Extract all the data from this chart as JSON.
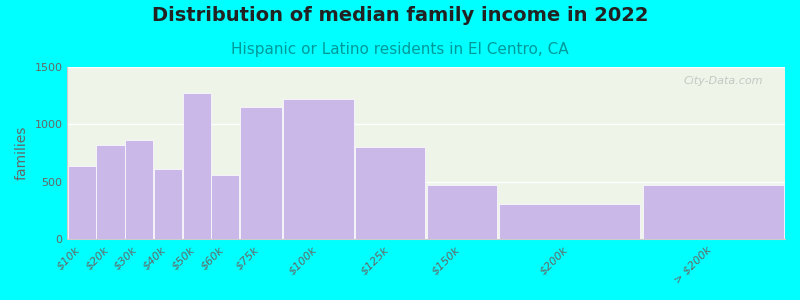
{
  "title": "Distribution of median family income in 2022",
  "subtitle": "Hispanic or Latino residents in El Centro, CA",
  "ylabel": "families",
  "categories": [
    "$10k",
    "$20k",
    "$30k",
    "$40k",
    "$50k",
    "$60k",
    "$75k",
    "$100k",
    "$125k",
    "$150k",
    "$200k",
    "> $200k"
  ],
  "values": [
    640,
    820,
    860,
    610,
    1270,
    560,
    1150,
    1220,
    800,
    470,
    305,
    470
  ],
  "bar_color": "#c9b8e8",
  "background_color": "#00ffff",
  "plot_bg_color": "#eef5e8",
  "title_fontsize": 14,
  "subtitle_fontsize": 11,
  "ylabel_fontsize": 10,
  "tick_fontsize": 8,
  "ylim": [
    0,
    1500
  ],
  "yticks": [
    0,
    500,
    1000,
    1500
  ],
  "watermark": "City-Data.com",
  "left_edges": [
    0,
    10,
    20,
    30,
    40,
    50,
    60,
    75,
    100,
    125,
    150,
    200
  ],
  "right_edges": [
    10,
    20,
    30,
    40,
    50,
    60,
    75,
    100,
    125,
    150,
    200,
    250
  ],
  "xtick_positions": [
    5,
    15,
    25,
    35,
    45,
    55,
    67.5,
    87.5,
    112.5,
    137.5,
    175,
    225
  ]
}
